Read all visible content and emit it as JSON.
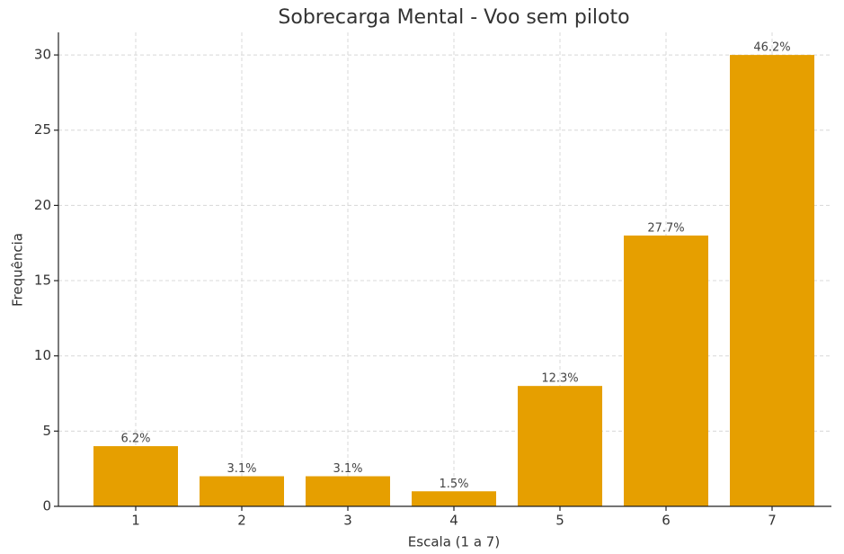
{
  "chart_data": {
    "type": "bar",
    "title": "Sobrecarga Mental - Voo sem piloto",
    "xlabel": "Escala (1 a 7)",
    "ylabel": "Frequência",
    "categories": [
      "1",
      "2",
      "3",
      "4",
      "5",
      "6",
      "7"
    ],
    "values": [
      4,
      2,
      2,
      1,
      8,
      18,
      30
    ],
    "value_labels": [
      "6.2%",
      "3.1%",
      "3.1%",
      "1.5%",
      "12.3%",
      "27.7%",
      "46.2%"
    ],
    "color": "#e69f00",
    "ylim": [
      0,
      31.5
    ],
    "yticks": [
      0,
      5,
      10,
      15,
      20,
      25,
      30
    ],
    "grid": true
  }
}
